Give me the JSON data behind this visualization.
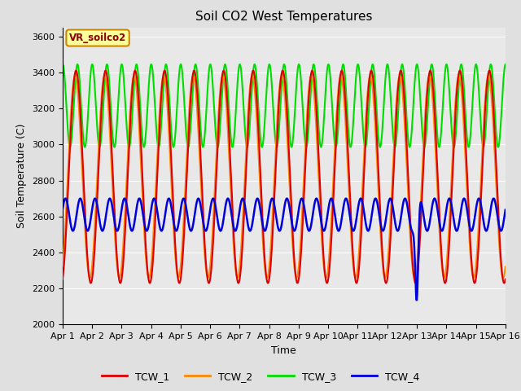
{
  "title": "Soil CO2 West Temperatures",
  "xlabel": "Time",
  "ylabel": "Soil Temperature (C)",
  "ylim": [
    2000,
    3650
  ],
  "yticks": [
    2000,
    2200,
    2400,
    2600,
    2800,
    3000,
    3200,
    3400,
    3600
  ],
  "x_labels": [
    "Apr 1",
    "Apr 2",
    "Apr 3",
    "Apr 4",
    "Apr 5",
    "Apr 6",
    "Apr 7",
    "Apr 8",
    "Apr 9",
    "Apr 10",
    "Apr 11",
    "Apr 12",
    "Apr 13",
    "Apr 14",
    "Apr 15",
    "Apr 16"
  ],
  "annotation_text": "VR_soilco2",
  "fig_bg_color": "#e0e0e0",
  "plot_bg_color": "#e8e8e8",
  "colors": {
    "TCW_1": "#dd0000",
    "TCW_2": "#ff8800",
    "TCW_3": "#00dd00",
    "TCW_4": "#0000dd"
  }
}
